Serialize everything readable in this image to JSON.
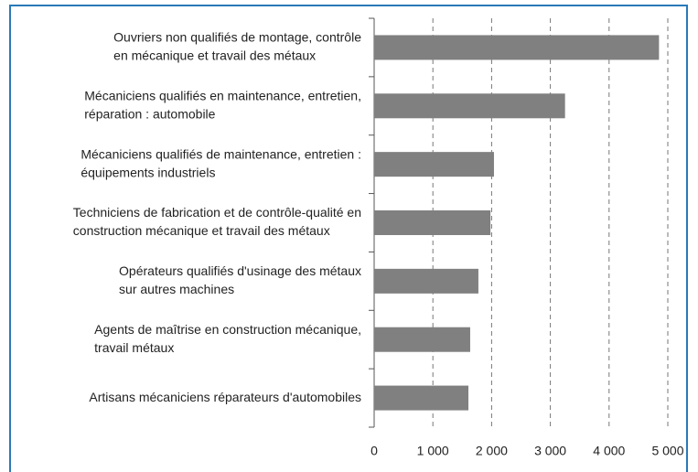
{
  "chart_data": {
    "type": "bar",
    "orientation": "horizontal",
    "categories": [
      [
        "Ouvriers non qualifiés de montage, contrôle",
        "en mécanique et travail des métaux"
      ],
      [
        "Mécaniciens qualifiés en maintenance, entretien,",
        "réparation : automobile"
      ],
      [
        "Mécaniciens qualifiés de maintenance, entretien :",
        "équipements industriels"
      ],
      [
        "Techniciens de fabrication et de contrôle-qualité en",
        "construction mécanique et travail des métaux"
      ],
      [
        "Opérateurs qualifiés d'usinage des métaux",
        "sur autres machines"
      ],
      [
        "Agents de maîtrise en construction mécanique,",
        "travail métaux"
      ],
      [
        "Artisans mécaniciens réparateurs d'automobiles"
      ]
    ],
    "values": [
      4850,
      3250,
      2040,
      1980,
      1775,
      1635,
      1605
    ],
    "color": "#808080",
    "xlim": [
      0,
      5000
    ],
    "xticks": [
      0,
      {
        "value": 1000,
        "label": "1 000"
      },
      {
        "value": 2000,
        "label": "2 000"
      },
      {
        "value": 3000,
        "label": "3 000"
      },
      {
        "value": 4000,
        "label": "4 000"
      },
      {
        "value": 5000,
        "label": "5 000"
      }
    ],
    "grid": true
  }
}
